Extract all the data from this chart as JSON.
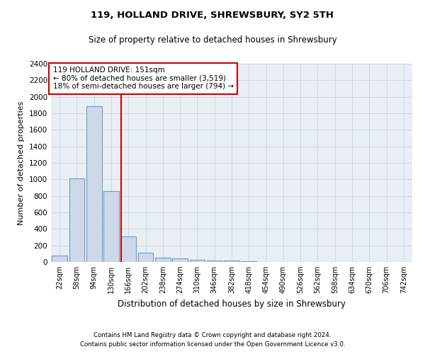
{
  "title1": "119, HOLLAND DRIVE, SHREWSBURY, SY2 5TH",
  "title2": "Size of property relative to detached houses in Shrewsbury",
  "xlabel": "Distribution of detached houses by size in Shrewsbury",
  "ylabel": "Number of detached properties",
  "bar_labels": [
    "22sqm",
    "58sqm",
    "94sqm",
    "130sqm",
    "166sqm",
    "202sqm",
    "238sqm",
    "274sqm",
    "310sqm",
    "346sqm",
    "382sqm",
    "418sqm",
    "454sqm",
    "490sqm",
    "526sqm",
    "562sqm",
    "598sqm",
    "634sqm",
    "670sqm",
    "706sqm",
    "742sqm"
  ],
  "bar_values": [
    80,
    1010,
    1890,
    860,
    310,
    115,
    55,
    40,
    25,
    15,
    15,
    10,
    0,
    0,
    0,
    0,
    0,
    0,
    0,
    0,
    0
  ],
  "bar_color": "#cdd9e8",
  "bar_edge_color": "#6b9dc2",
  "bar_edge_width": 0.8,
  "grid_color": "#c8d4e0",
  "background_color": "#e8eef4",
  "annotation_line1": "119 HOLLAND DRIVE: 151sqm",
  "annotation_line2": "← 80% of detached houses are smaller (3,519)",
  "annotation_line3": "18% of semi-detached houses are larger (794) →",
  "annotation_box_color": "#ffffff",
  "annotation_box_edge": "#cc0000",
  "red_line_color": "#cc0000",
  "ylim": [
    0,
    2400
  ],
  "yticks": [
    0,
    200,
    400,
    600,
    800,
    1000,
    1200,
    1400,
    1600,
    1800,
    2000,
    2200,
    2400
  ],
  "footer1": "Contains HM Land Registry data © Crown copyright and database right 2024.",
  "footer2": "Contains public sector information licensed under the Open Government Licence v3.0."
}
